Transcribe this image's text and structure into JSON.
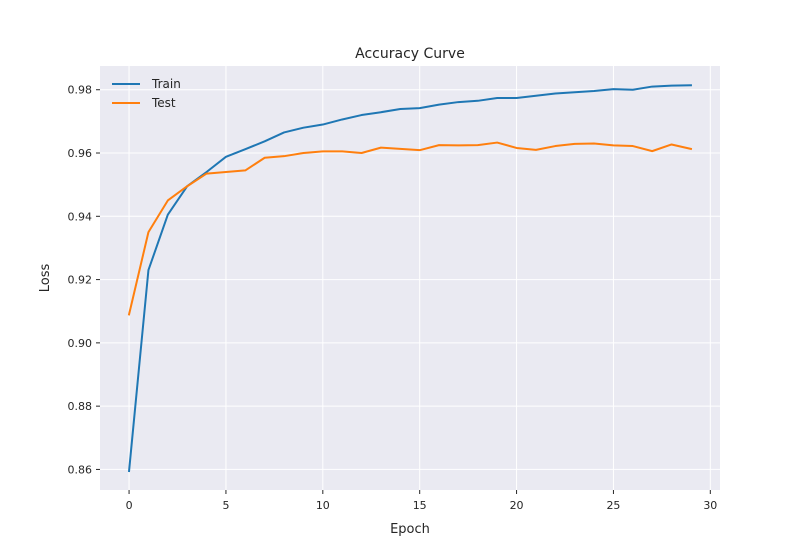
{
  "chart_data": {
    "type": "line",
    "title": "Accuracy Curve",
    "xlabel": "Epoch",
    "ylabel": "Loss",
    "xlim": [
      -1.5,
      30.5
    ],
    "ylim": [
      0.8535,
      0.9875
    ],
    "xticks": [
      0,
      5,
      10,
      15,
      20,
      25,
      30
    ],
    "yticks": [
      0.86,
      0.88,
      0.9,
      0.92,
      0.94,
      0.96,
      0.98
    ],
    "ytick_labels": [
      "0.86",
      "0.88",
      "0.90",
      "0.92",
      "0.94",
      "0.96",
      "0.98"
    ],
    "grid": true,
    "legend_position": "top-left",
    "x": [
      0,
      1,
      2,
      3,
      4,
      5,
      6,
      7,
      8,
      9,
      10,
      11,
      12,
      13,
      14,
      15,
      16,
      17,
      18,
      19,
      20,
      21,
      22,
      23,
      24,
      25,
      26,
      27,
      28,
      29
    ],
    "series": [
      {
        "name": "Train",
        "color": "#1f77b4",
        "values": [
          0.8595,
          0.923,
          0.9405,
          0.9495,
          0.954,
          0.9588,
          0.9612,
          0.9637,
          0.9665,
          0.968,
          0.969,
          0.9706,
          0.972,
          0.9729,
          0.9739,
          0.9742,
          0.9753,
          0.9761,
          0.9765,
          0.9774,
          0.9774,
          0.9781,
          0.9788,
          0.9792,
          0.9796,
          0.9802,
          0.98,
          0.981,
          0.9813,
          0.9814
        ]
      },
      {
        "name": "Test",
        "color": "#ff7f0e",
        "values": [
          0.909,
          0.935,
          0.945,
          0.9495,
          0.9535,
          0.954,
          0.9545,
          0.9585,
          0.959,
          0.96,
          0.9605,
          0.9605,
          0.96,
          0.9617,
          0.9613,
          0.9609,
          0.9625,
          0.9624,
          0.9625,
          0.9633,
          0.9616,
          0.961,
          0.9622,
          0.9629,
          0.963,
          0.9624,
          0.9622,
          0.9606,
          0.9627,
          0.9613
        ]
      }
    ]
  }
}
